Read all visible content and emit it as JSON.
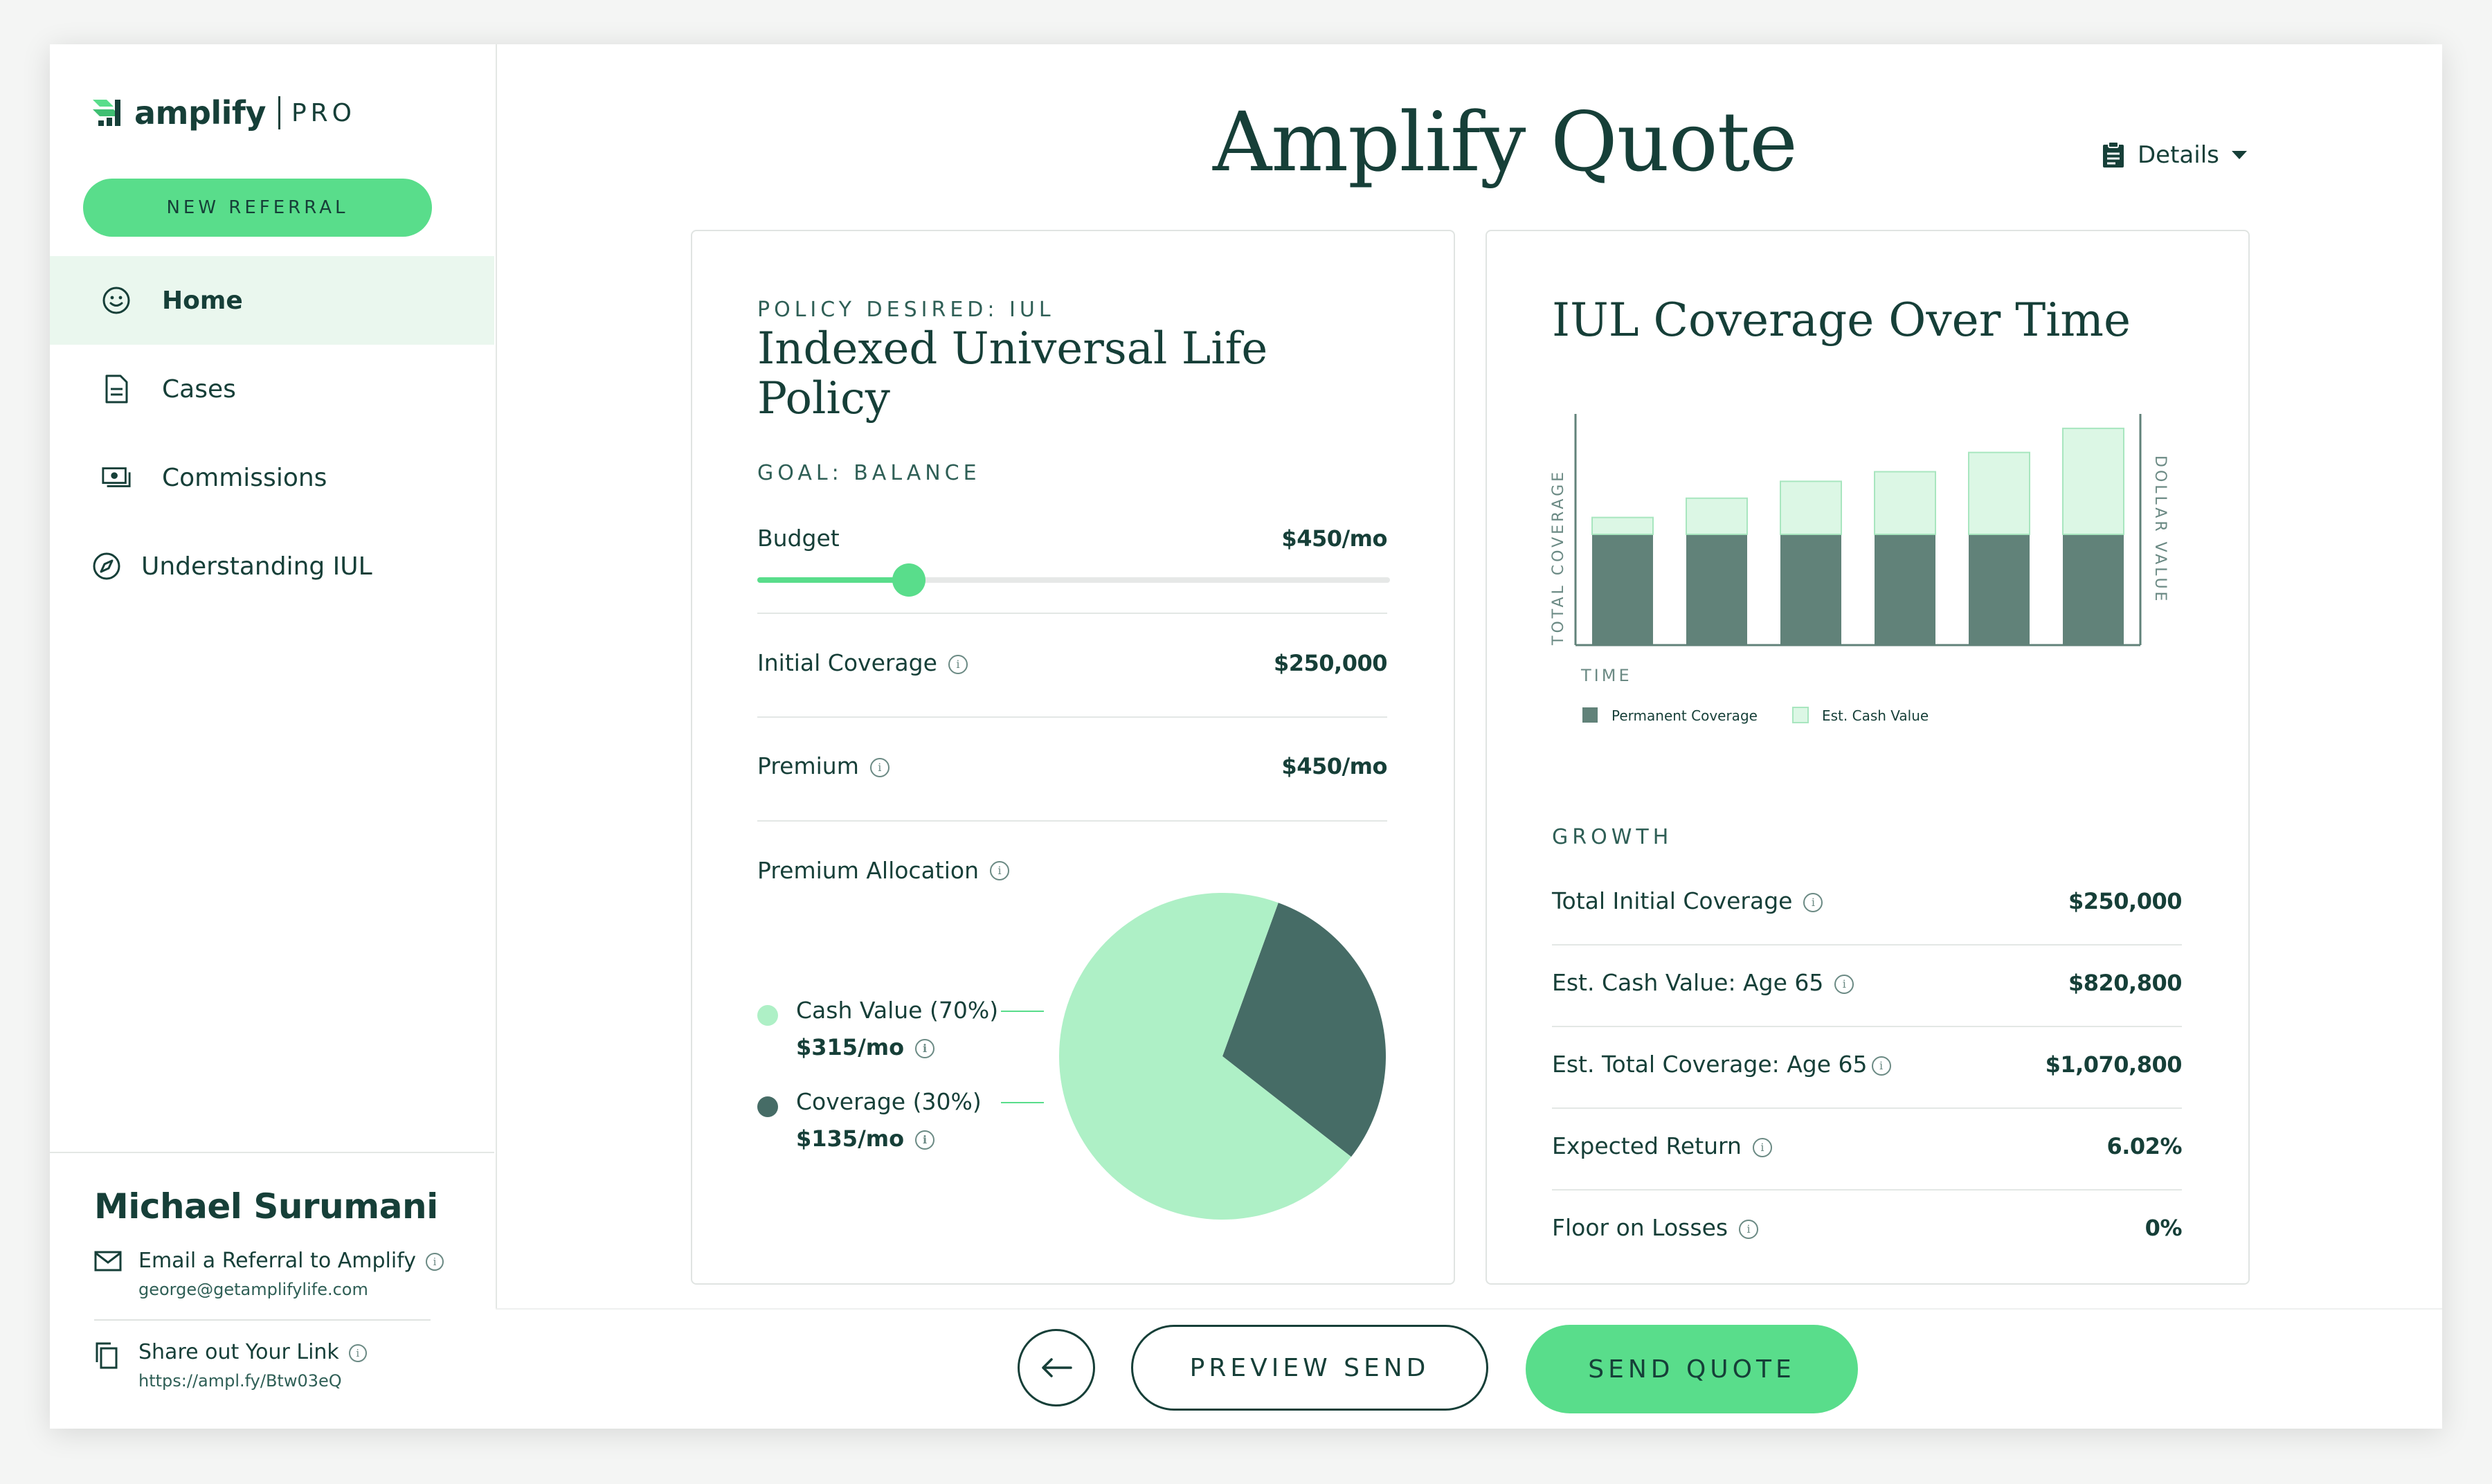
{
  "brand": {
    "name": "amplify",
    "tier": "PRO",
    "accent": "#59dd8b",
    "dark": "#163f38"
  },
  "sidebar": {
    "new_referral": "NEW REFERRAL",
    "items": [
      {
        "label": "Home",
        "icon": "smiley-icon",
        "active": true
      },
      {
        "label": "Cases",
        "icon": "document-icon"
      },
      {
        "label": "Commissions",
        "icon": "cash-icon"
      },
      {
        "label": "Understanding IUL",
        "icon": "compass-icon"
      }
    ],
    "user": {
      "name": "Michael Surumani",
      "email_label": "Email a Referral to Amplify",
      "email": "george@getamplifylife.com",
      "share_label": "Share out Your Link",
      "share_url": "https://ampl.fy/Btw03eQ"
    }
  },
  "header": {
    "title": "Amplify Quote",
    "details": "Details"
  },
  "policy": {
    "eyebrow": "POLICY DESIRED: IUL",
    "title_line1": "Indexed Universal Life",
    "title_line2": "Policy",
    "goal": "GOAL: BALANCE",
    "budget_label": "Budget",
    "budget_value": "$450/mo",
    "budget_slider_fraction": 0.24,
    "initial_coverage_label": "Initial Coverage",
    "initial_coverage_value": "$250,000",
    "premium_label": "Premium",
    "premium_value": "$450/mo",
    "allocation_label": "Premium Allocation",
    "allocation": [
      {
        "label": "Cash Value (70%)",
        "amount": "$315/mo",
        "color": "#aef0c6"
      },
      {
        "label": "Coverage (30%)",
        "amount": "$135/mo",
        "color": "#466c66"
      }
    ]
  },
  "coverage_card": {
    "title": "IUL Coverage Over Time",
    "growth_heading": "GROWTH",
    "rows": [
      {
        "label": "Total Initial Coverage",
        "value": "$250,000"
      },
      {
        "label": "Est. Cash Value: Age 65",
        "value": "$820,800"
      },
      {
        "label": "Est. Total Coverage: Age 65",
        "value": "$1,070,800"
      },
      {
        "label": "Expected Return",
        "value": "6.02%"
      },
      {
        "label": "Floor on Losses",
        "value": "0%"
      }
    ]
  },
  "chart_data": [
    {
      "type": "pie",
      "labels": [
        "Cash Value (70%)",
        "Coverage (30%)"
      ],
      "values": [
        70,
        30
      ],
      "colors": [
        "#aef0c6",
        "#466c66"
      ],
      "start_angle_deg": 20
    },
    {
      "type": "bar",
      "stacked": true,
      "xlabel": "TIME",
      "ylabel": "TOTAL COVERAGE",
      "y2label": "DOLLAR VALUE",
      "categories": [
        "",
        "",
        "",
        "",
        "",
        ""
      ],
      "series": [
        {
          "name": "Permanent Coverage",
          "values": [
            46,
            46,
            46,
            46,
            46,
            46
          ],
          "color": "#618279"
        },
        {
          "name": "Est. Cash Value",
          "values": [
            7,
            15,
            22,
            26,
            34,
            44
          ],
          "color": "#dcf7e5"
        }
      ],
      "ylim": [
        0,
        96
      ]
    }
  ],
  "footer": {
    "preview": "PREVIEW SEND",
    "send": "SEND QUOTE"
  }
}
